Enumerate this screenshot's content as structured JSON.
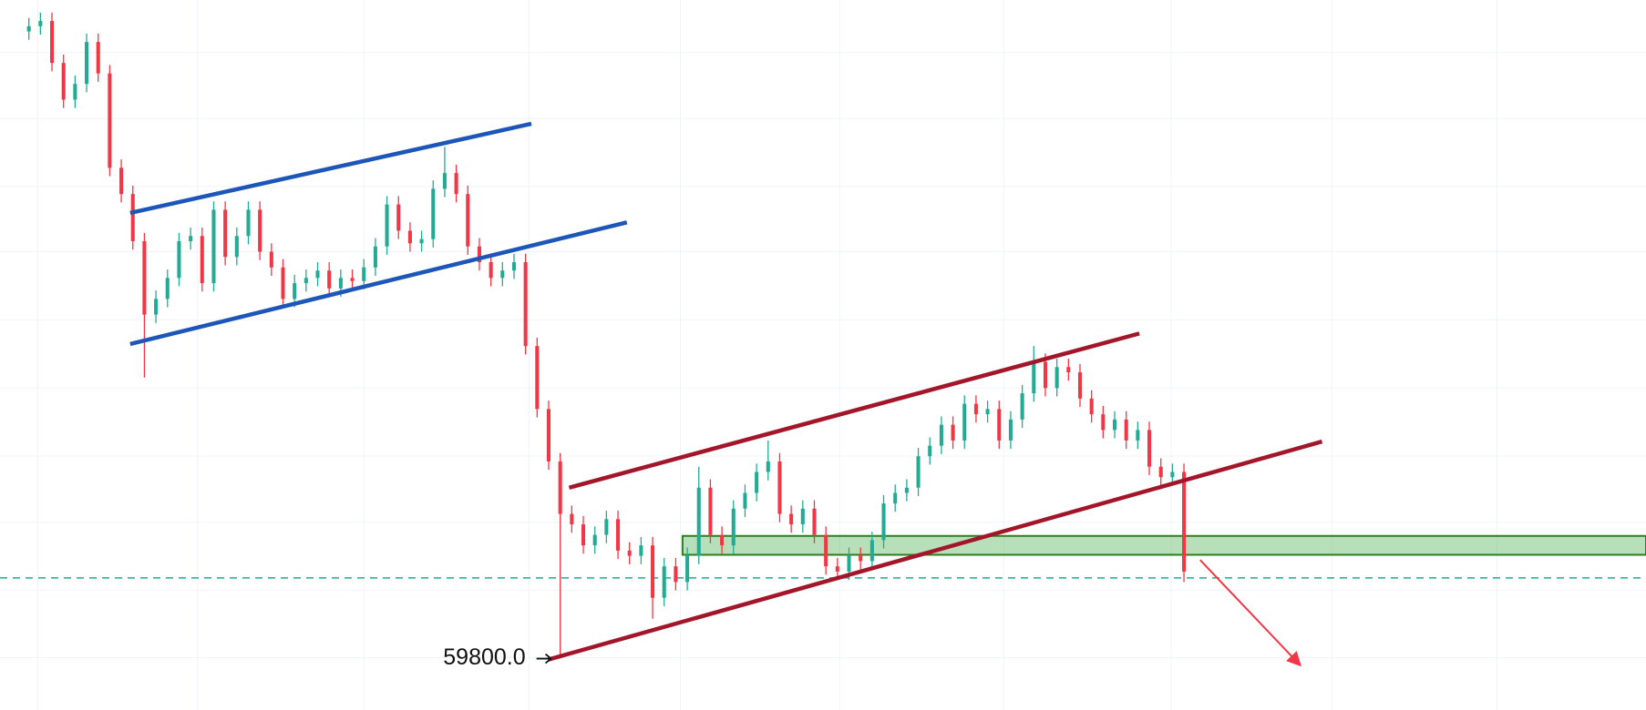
{
  "chart_data": {
    "type": "candlestick",
    "xlim": [
      -2.5,
      140
    ],
    "ylim": [
      59310,
      66080
    ],
    "grid": true,
    "xgrid": [
      0.77,
      14.6,
      29,
      43.3,
      56.4,
      70.2,
      84.4,
      98.9,
      112.8,
      127.1
    ],
    "ygrid": [
      65580,
      64950,
      64300,
      63680,
      63030,
      62380,
      61730,
      61100,
      60450,
      59810
    ],
    "up_color": "#22ab94",
    "down_color": "#f23645",
    "grid_color": "#f0f3fa",
    "candles": [
      [
        65780,
        65910,
        65700,
        65830
      ],
      [
        65830,
        65960,
        65750,
        65880
      ],
      [
        65880,
        65960,
        65400,
        65480
      ],
      [
        65480,
        65560,
        65050,
        65130
      ],
      [
        65130,
        65360,
        65050,
        65280
      ],
      [
        65280,
        65760,
        65200,
        65680
      ],
      [
        65680,
        65760,
        65300,
        65380
      ],
      [
        65380,
        65460,
        64400,
        64480
      ],
      [
        64480,
        64560,
        64150,
        64230
      ],
      [
        64230,
        64310,
        63700,
        63780
      ],
      [
        63780,
        63860,
        62480,
        63080
      ],
      [
        63080,
        63310,
        63000,
        63230
      ],
      [
        63230,
        63510,
        63150,
        63430
      ],
      [
        63430,
        63860,
        63350,
        63780
      ],
      [
        63780,
        63910,
        63700,
        63830
      ],
      [
        63830,
        63910,
        63300,
        63380
      ],
      [
        63380,
        64160,
        63300,
        64080
      ],
      [
        64080,
        64160,
        63550,
        63630
      ],
      [
        63630,
        63910,
        63550,
        63830
      ],
      [
        63830,
        64160,
        63750,
        64080
      ],
      [
        64080,
        64160,
        63600,
        63680
      ],
      [
        63680,
        63760,
        63450,
        63530
      ],
      [
        63530,
        63610,
        63150,
        63230
      ],
      [
        63230,
        63460,
        63150,
        63380
      ],
      [
        63380,
        63510,
        63300,
        63430
      ],
      [
        63430,
        63580,
        63350,
        63500
      ],
      [
        63500,
        63580,
        63250,
        63330
      ],
      [
        63330,
        63510,
        63250,
        63430
      ],
      [
        63430,
        63510,
        63320,
        63400
      ],
      [
        63400,
        63610,
        63320,
        63530
      ],
      [
        63530,
        63810,
        63450,
        63730
      ],
      [
        63730,
        64210,
        63650,
        64130
      ],
      [
        64130,
        64210,
        63800,
        63880
      ],
      [
        63880,
        63960,
        63680,
        63760
      ],
      [
        63760,
        63880,
        63680,
        63800
      ],
      [
        63800,
        64360,
        63720,
        64280
      ],
      [
        64280,
        64680,
        64200,
        64430
      ],
      [
        64430,
        64510,
        64150,
        64230
      ],
      [
        64230,
        64310,
        63650,
        63730
      ],
      [
        63730,
        63810,
        63500,
        63580
      ],
      [
        63580,
        63660,
        63350,
        63430
      ],
      [
        63430,
        63580,
        63350,
        63500
      ],
      [
        63500,
        63660,
        63420,
        63580
      ],
      [
        63580,
        63660,
        62700,
        62780
      ],
      [
        62780,
        62860,
        62100,
        62180
      ],
      [
        62180,
        62260,
        61600,
        61680
      ],
      [
        61680,
        61760,
        59800,
        61180
      ],
      [
        61180,
        61260,
        61000,
        61080
      ],
      [
        61080,
        61160,
        60800,
        60880
      ],
      [
        60880,
        61060,
        60800,
        60980
      ],
      [
        60980,
        61210,
        60900,
        61130
      ],
      [
        61130,
        61210,
        60750,
        60830
      ],
      [
        60830,
        60910,
        60700,
        60780
      ],
      [
        60780,
        60960,
        60700,
        60880
      ],
      [
        60880,
        60960,
        60180,
        60380
      ],
      [
        60380,
        60760,
        60300,
        60680
      ],
      [
        60680,
        60760,
        60450,
        60530
      ],
      [
        60530,
        60860,
        60450,
        60780
      ],
      [
        60780,
        61630,
        60700,
        61430
      ],
      [
        61430,
        61510,
        60900,
        60980
      ],
      [
        60980,
        61060,
        60800,
        60880
      ],
      [
        60880,
        61310,
        60800,
        61230
      ],
      [
        61230,
        61460,
        61150,
        61380
      ],
      [
        61380,
        61660,
        61300,
        61580
      ],
      [
        61580,
        61880,
        61500,
        61680
      ],
      [
        61680,
        61760,
        61100,
        61180
      ],
      [
        61180,
        61260,
        61000,
        61080
      ],
      [
        61080,
        61310,
        61000,
        61230
      ],
      [
        61230,
        61310,
        60900,
        60980
      ],
      [
        60980,
        61060,
        60600,
        60680
      ],
      [
        60680,
        60760,
        60550,
        60630
      ],
      [
        60630,
        60860,
        60550,
        60780
      ],
      [
        60780,
        60860,
        60650,
        60730
      ],
      [
        60730,
        61010,
        60650,
        60930
      ],
      [
        60930,
        61360,
        60850,
        61280
      ],
      [
        61280,
        61460,
        61200,
        61380
      ],
      [
        61380,
        61510,
        61300,
        61430
      ],
      [
        61430,
        61810,
        61350,
        61730
      ],
      [
        61730,
        61910,
        61650,
        61830
      ],
      [
        61830,
        62110,
        61750,
        62030
      ],
      [
        62030,
        62110,
        61800,
        61880
      ],
      [
        61880,
        62310,
        61800,
        62230
      ],
      [
        62230,
        62310,
        62050,
        62130
      ],
      [
        62130,
        62260,
        62050,
        62180
      ],
      [
        62180,
        62260,
        61800,
        61880
      ],
      [
        61880,
        62160,
        61800,
        62080
      ],
      [
        62080,
        62410,
        62000,
        62330
      ],
      [
        62330,
        62780,
        62250,
        62630
      ],
      [
        62630,
        62710,
        62300,
        62380
      ],
      [
        62380,
        62660,
        62300,
        62580
      ],
      [
        62580,
        62660,
        62450,
        62530
      ],
      [
        62530,
        62610,
        62200,
        62280
      ],
      [
        62280,
        62360,
        62050,
        62130
      ],
      [
        62130,
        62210,
        61900,
        61980
      ],
      [
        61980,
        62160,
        61900,
        62080
      ],
      [
        62080,
        62160,
        61800,
        61880
      ],
      [
        61880,
        62060,
        61800,
        61980
      ],
      [
        61980,
        62060,
        61550,
        61630
      ],
      [
        61630,
        61710,
        61450,
        61530
      ],
      [
        61530,
        61660,
        61450,
        61580
      ],
      [
        61580,
        61660,
        60530,
        60630
      ]
    ],
    "trendlines": [
      {
        "color": "#1b56b8",
        "x": [
          8.77,
          43.5
        ],
        "y": [
          64050,
          64900
        ]
      },
      {
        "color": "#1b56b8",
        "x": [
          8.77,
          51.77
        ],
        "y": [
          62800,
          63960
        ]
      },
      {
        "color": "#a3162a",
        "x": [
          46.77,
          96.14
        ],
        "y": [
          61430,
          62900
        ]
      },
      {
        "color": "#a3162a",
        "x": [
          44.95,
          111.95
        ],
        "y": [
          59790,
          61870
        ]
      }
    ],
    "zone": {
      "color": "#4caf50",
      "border": "#2e7d1f",
      "x": [
        56.59,
        140
      ],
      "y": [
        60790,
        60970
      ]
    },
    "hline": {
      "color": "#22ab94",
      "value": 60570
    },
    "arrow": {
      "color": "#f23645",
      "x": [
        101.4,
        109.95
      ],
      "y": [
        60740,
        59750
      ]
    },
    "annotation": {
      "x": 43,
      "arrow_x": 45.2,
      "value": 59800,
      "label": "59800.0"
    }
  }
}
